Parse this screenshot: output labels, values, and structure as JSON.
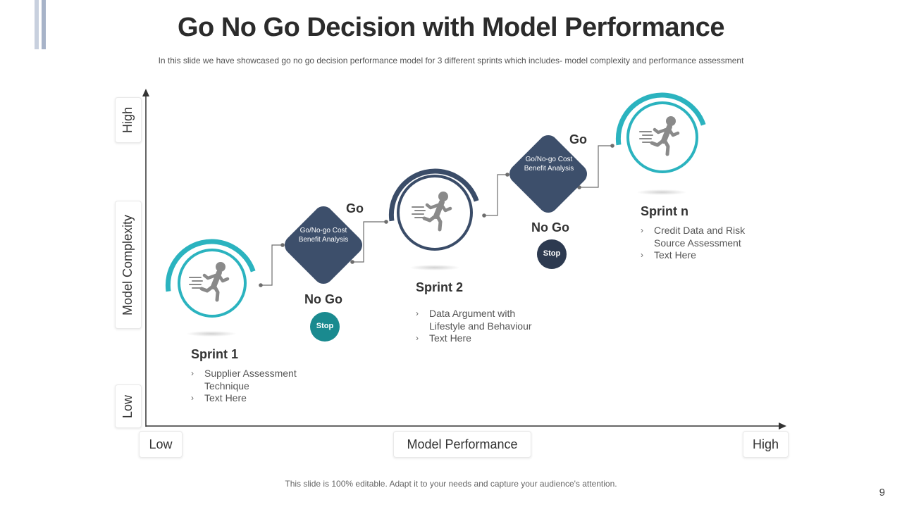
{
  "slide": {
    "title": "Go No Go Decision with Model Performance",
    "subtitle": "In this slide we have showcased go no go decision performance  model for 3 different  sprints which includes- model complexity and performance  assessment",
    "footer": "This slide is 100% editable. Adapt it to your needs and capture your audience's attention.",
    "page_number": "9"
  },
  "axes": {
    "y_title": "Model Complexity",
    "y_high": "High",
    "y_low": "Low",
    "x_title": "Model Performance",
    "x_low": "Low",
    "x_high": "High"
  },
  "sprints": [
    {
      "title": "Sprint 1",
      "bullets": [
        "Supplier Assessment Technique",
        "Text Here"
      ],
      "ring_color": "#2bb3bf"
    },
    {
      "title": "Sprint 2",
      "bullets": [
        "Data Argument with Lifestyle and Behaviour",
        "Text Here"
      ],
      "ring_color": "#3a4c68"
    },
    {
      "title": "Sprint n",
      "bullets": [
        "Credit Data and Risk Source Assessment",
        "Text Here"
      ],
      "ring_color": "#2bb3bf"
    }
  ],
  "decisions": [
    {
      "diamond_text": "Go/No-go Cost Benefit Analysis",
      "go_label": "Go",
      "nogo_label": "No Go",
      "stop_label": "Stop",
      "stop_color": "#1a8a8f"
    },
    {
      "diamond_text": "Go/No-go Cost Benefit Analysis",
      "go_label": "Go",
      "nogo_label": "No Go",
      "stop_label": "Stop",
      "stop_color": "#2d3a50"
    }
  ],
  "colors": {
    "teal": "#2bb3bf",
    "navy": "#3a4c68",
    "diamond": "#3d4f6b",
    "icon_gray": "#8a8a8a"
  },
  "icons": [
    "runner-icon",
    "chevron-right-icon"
  ]
}
